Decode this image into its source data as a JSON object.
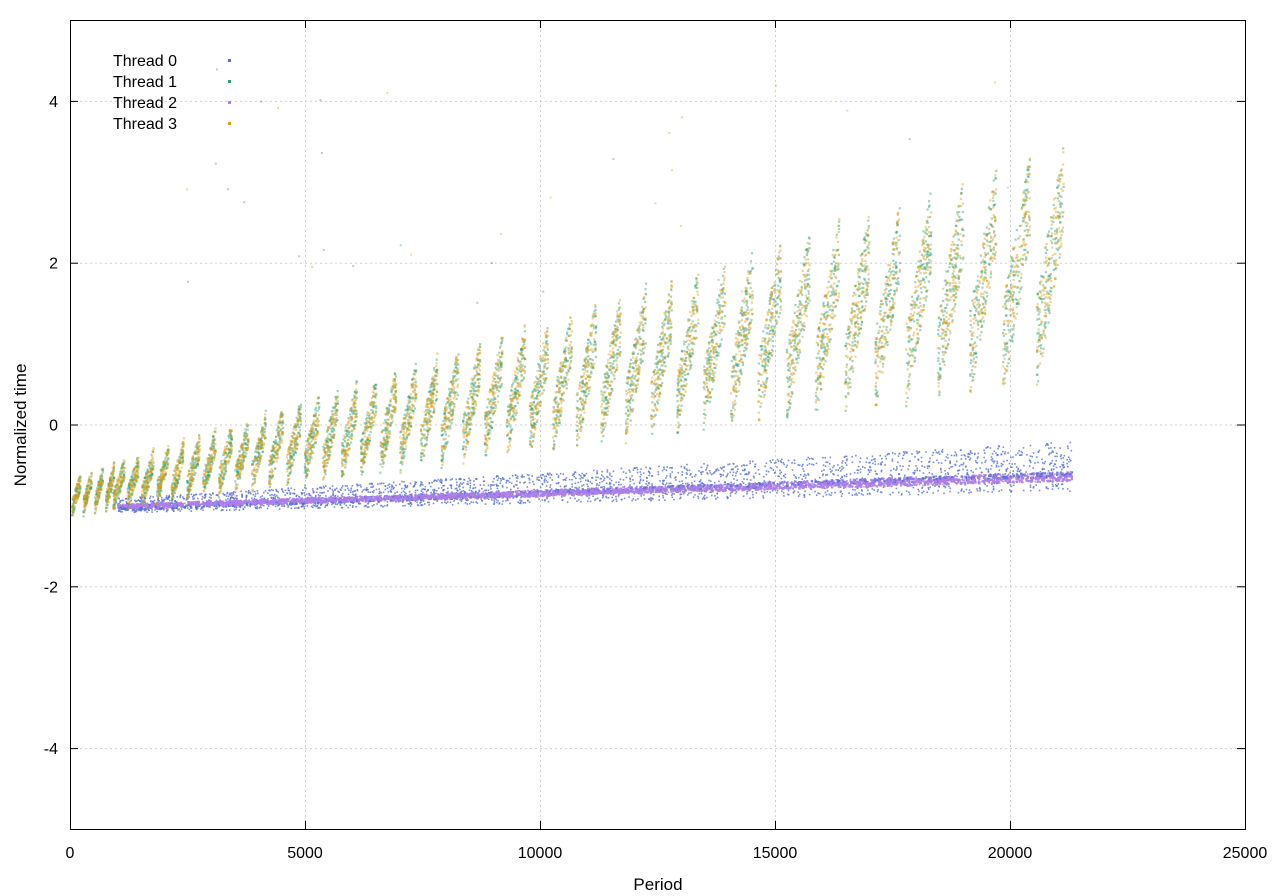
{
  "chart_data": {
    "type": "scatter",
    "title": "",
    "xlabel": "Period",
    "ylabel": "Normalized time",
    "xlim": [
      0,
      25000
    ],
    "ylim": [
      -5,
      5
    ],
    "x_ticks": [
      0,
      5000,
      10000,
      15000,
      20000,
      25000
    ],
    "y_ticks": [
      -4,
      -2,
      0,
      2,
      4
    ],
    "grid": true,
    "legend_position": "top-left",
    "series": [
      {
        "name": "Thread 0",
        "color": "#5b6fd6",
        "pattern": "lower band",
        "x_range": [
          1000,
          21300
        ],
        "start_value": -1.02,
        "end_value": -0.6,
        "spread": 0.15,
        "points": [
          [
            1000,
            -1.02
          ],
          [
            2000,
            -0.99
          ],
          [
            4000,
            -0.95
          ],
          [
            6000,
            -0.9
          ],
          [
            8000,
            -0.86
          ],
          [
            10000,
            -0.82
          ],
          [
            12000,
            -0.78
          ],
          [
            14000,
            -0.74
          ],
          [
            16000,
            -0.7
          ],
          [
            18000,
            -0.67
          ],
          [
            20000,
            -0.63
          ],
          [
            21300,
            -0.6
          ]
        ]
      },
      {
        "name": "Thread 1",
        "color": "#2f9e6e",
        "pattern": "upper sawtooth",
        "x_range": [
          0,
          21300
        ],
        "points": [
          [
            0,
            -1.1
          ],
          [
            1000,
            -0.6
          ],
          [
            2000,
            -0.3
          ],
          [
            3000,
            -0.1
          ],
          [
            4000,
            0.2
          ],
          [
            5000,
            0.4
          ],
          [
            6000,
            0.7
          ],
          [
            7000,
            1.0
          ],
          [
            8000,
            1.2
          ],
          [
            9000,
            1.3
          ],
          [
            10000,
            1.5
          ],
          [
            11000,
            1.7
          ],
          [
            12000,
            1.8
          ],
          [
            13000,
            2.0
          ],
          [
            14000,
            2.3
          ],
          [
            15000,
            2.4
          ],
          [
            16000,
            2.5
          ],
          [
            17000,
            2.7
          ],
          [
            18000,
            2.7
          ],
          [
            19000,
            2.8
          ],
          [
            20000,
            2.8
          ],
          [
            21300,
            2.6
          ]
        ]
      },
      {
        "name": "Thread 2",
        "color": "#b07ee8",
        "pattern": "lower band",
        "x_range": [
          1000,
          21300
        ],
        "start_value": -1.0,
        "end_value": -0.65,
        "spread": 0.07,
        "points": [
          [
            1000,
            -1.0
          ],
          [
            3000,
            -0.96
          ],
          [
            5000,
            -0.92
          ],
          [
            7000,
            -0.88
          ],
          [
            9000,
            -0.84
          ],
          [
            11000,
            -0.8
          ],
          [
            13000,
            -0.76
          ],
          [
            15000,
            -0.73
          ],
          [
            17000,
            -0.7
          ],
          [
            19000,
            -0.68
          ],
          [
            21300,
            -0.65
          ]
        ]
      },
      {
        "name": "Thread 3",
        "color": "#d4a017",
        "pattern": "upper sawtooth",
        "x_range": [
          0,
          21300
        ],
        "points": [
          [
            0,
            -1.1
          ],
          [
            1000,
            -0.6
          ],
          [
            2000,
            -0.3
          ],
          [
            3000,
            0.0
          ],
          [
            4000,
            0.2
          ],
          [
            5000,
            0.5
          ],
          [
            6000,
            0.7
          ],
          [
            7000,
            1.1
          ],
          [
            8000,
            1.2
          ],
          [
            9000,
            1.3
          ],
          [
            10000,
            1.6
          ],
          [
            11000,
            1.8
          ],
          [
            12000,
            1.9
          ],
          [
            13000,
            2.1
          ],
          [
            14000,
            2.4
          ],
          [
            15000,
            2.5
          ],
          [
            16000,
            2.4
          ],
          [
            17000,
            2.5
          ],
          [
            18000,
            2.6
          ],
          [
            19000,
            2.7
          ],
          [
            20000,
            2.8
          ],
          [
            21300,
            2.9
          ]
        ]
      }
    ]
  }
}
